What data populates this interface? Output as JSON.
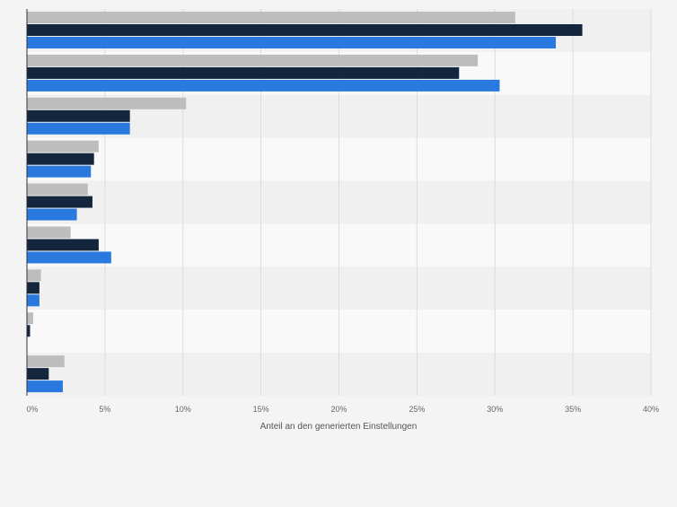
{
  "chart_data": {
    "type": "bar",
    "orientation": "horizontal",
    "categories": [
      "",
      "",
      "",
      "",
      "",
      "",
      "",
      "",
      ""
    ],
    "series": [
      {
        "color": "#bdbdbd",
        "values": [
          31.3,
          28.9,
          10.2,
          4.6,
          3.9,
          2.8,
          0.9,
          0.4,
          2.4
        ]
      },
      {
        "color": "#14263e",
        "values": [
          35.6,
          27.7,
          6.6,
          4.3,
          4.2,
          4.6,
          0.8,
          0.2,
          1.4
        ]
      },
      {
        "color": "#2979de",
        "values": [
          33.9,
          30.3,
          6.6,
          4.1,
          3.2,
          5.4,
          0.8,
          0.0,
          2.3
        ]
      }
    ],
    "xlabel": "Anteil an den generierten Einstellungen",
    "xlim": [
      0,
      40
    ],
    "xticks": [
      0,
      5,
      10,
      15,
      20,
      25,
      30,
      35,
      40
    ],
    "tick_labels": [
      "0%",
      "5%",
      "10%",
      "15%",
      "20%",
      "25%",
      "30%",
      "35%",
      "40%"
    ],
    "grid": true,
    "legend": "none"
  }
}
